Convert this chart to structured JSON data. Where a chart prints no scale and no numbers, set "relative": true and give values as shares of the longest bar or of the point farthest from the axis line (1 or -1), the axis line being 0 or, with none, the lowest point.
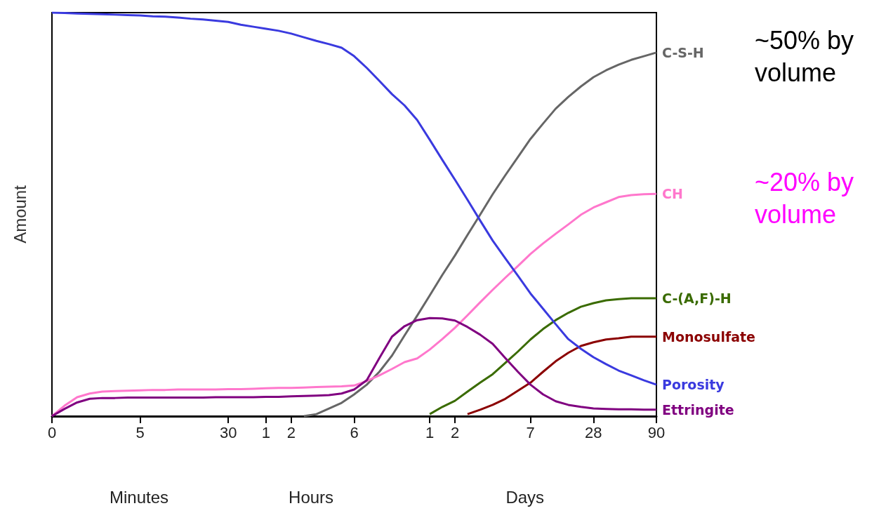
{
  "chart_data": {
    "type": "line",
    "relative": true,
    "ylabel": "Amount",
    "grid": false,
    "legend": false,
    "marker": "none",
    "line_style": "solid",
    "categories": [
      "0",
      null,
      null,
      null,
      null,
      null,
      null,
      "5",
      null,
      null,
      null,
      null,
      null,
      null,
      "30",
      null,
      null,
      "1",
      null,
      "2",
      null,
      null,
      null,
      null,
      "6",
      null,
      null,
      null,
      null,
      null,
      "1",
      null,
      "2",
      null,
      null,
      null,
      null,
      null,
      "7",
      null,
      null,
      null,
      null,
      "28",
      null,
      null,
      null,
      null,
      "90"
    ],
    "series": [
      {
        "name": "C-S-H",
        "color": "#666666",
        "values": [
          null,
          null,
          null,
          null,
          null,
          null,
          null,
          null,
          null,
          null,
          null,
          null,
          null,
          null,
          null,
          null,
          null,
          null,
          null,
          null,
          0,
          0.005,
          0.019,
          0.033,
          0.054,
          0.078,
          0.11,
          0.15,
          0.2,
          0.249,
          0.299,
          0.35,
          0.398,
          0.449,
          0.499,
          0.55,
          0.597,
          0.642,
          0.687,
          0.725,
          0.762,
          0.791,
          0.817,
          0.84,
          0.857,
          0.871,
          0.883,
          0.892,
          0.901
        ]
      },
      {
        "name": "CH",
        "color": "#ff77cc",
        "values": [
          0,
          0.026,
          0.047,
          0.056,
          0.061,
          0.062,
          0.063,
          0.064,
          0.065,
          0.065,
          0.066,
          0.066,
          0.066,
          0.066,
          0.067,
          0.067,
          0.068,
          0.069,
          0.07,
          0.07,
          0.071,
          0.072,
          0.073,
          0.074,
          0.076,
          0.087,
          0.101,
          0.117,
          0.134,
          0.143,
          0.165,
          0.191,
          0.219,
          0.25,
          0.282,
          0.313,
          0.343,
          0.372,
          0.402,
          0.428,
          0.452,
          0.475,
          0.499,
          0.517,
          0.53,
          0.543,
          0.548,
          0.55,
          0.551
        ]
      },
      {
        "name": "C-(A,F)-H",
        "color": "#3a6b00",
        "values": [
          null,
          null,
          null,
          null,
          null,
          null,
          null,
          null,
          null,
          null,
          null,
          null,
          null,
          null,
          null,
          null,
          null,
          null,
          null,
          null,
          null,
          null,
          null,
          null,
          null,
          null,
          null,
          null,
          null,
          null,
          0.005,
          0.023,
          0.038,
          0.061,
          0.083,
          0.104,
          0.132,
          0.16,
          0.19,
          0.216,
          0.238,
          0.256,
          0.271,
          0.28,
          0.287,
          0.29,
          0.292,
          0.292,
          0.292
        ]
      },
      {
        "name": "Monosulfate",
        "color": "#8b0000",
        "values": [
          null,
          null,
          null,
          null,
          null,
          null,
          null,
          null,
          null,
          null,
          null,
          null,
          null,
          null,
          null,
          null,
          null,
          null,
          null,
          null,
          null,
          null,
          null,
          null,
          null,
          null,
          null,
          null,
          null,
          null,
          null,
          null,
          null,
          0.005,
          0.016,
          0.028,
          0.043,
          0.063,
          0.083,
          0.11,
          0.136,
          0.157,
          0.174,
          0.183,
          0.19,
          0.193,
          0.197,
          0.197,
          0.197
        ]
      },
      {
        "name": "Porosity",
        "color": "#3a3adf",
        "values": [
          1,
          0.999,
          0.998,
          0.997,
          0.996,
          0.995,
          0.994,
          0.993,
          0.991,
          0.99,
          0.988,
          0.985,
          0.983,
          0.98,
          0.977,
          0.97,
          0.965,
          0.96,
          0.955,
          0.948,
          0.939,
          0.93,
          0.922,
          0.913,
          0.892,
          0.863,
          0.831,
          0.798,
          0.77,
          0.734,
          0.685,
          0.635,
          0.586,
          0.536,
          0.485,
          0.435,
          0.391,
          0.348,
          0.304,
          0.266,
          0.228,
          0.191,
          0.167,
          0.146,
          0.129,
          0.113,
          0.101,
          0.089,
          0.078
        ]
      },
      {
        "name": "Ettringite",
        "color": "#800080",
        "values": [
          0,
          0.018,
          0.034,
          0.043,
          0.045,
          0.045,
          0.046,
          0.046,
          0.046,
          0.046,
          0.046,
          0.046,
          0.046,
          0.047,
          0.047,
          0.047,
          0.047,
          0.048,
          0.048,
          0.049,
          0.05,
          0.051,
          0.052,
          0.056,
          0.066,
          0.089,
          0.144,
          0.197,
          0.223,
          0.238,
          0.243,
          0.242,
          0.237,
          0.221,
          0.202,
          0.179,
          0.144,
          0.11,
          0.078,
          0.054,
          0.037,
          0.028,
          0.023,
          0.019,
          0.018,
          0.017,
          0.017,
          0.016,
          0.016
        ]
      }
    ],
    "annotations": [
      "~50% by volume",
      "~20% by volume",
      "Minutes",
      "Hours",
      "Days"
    ]
  }
}
